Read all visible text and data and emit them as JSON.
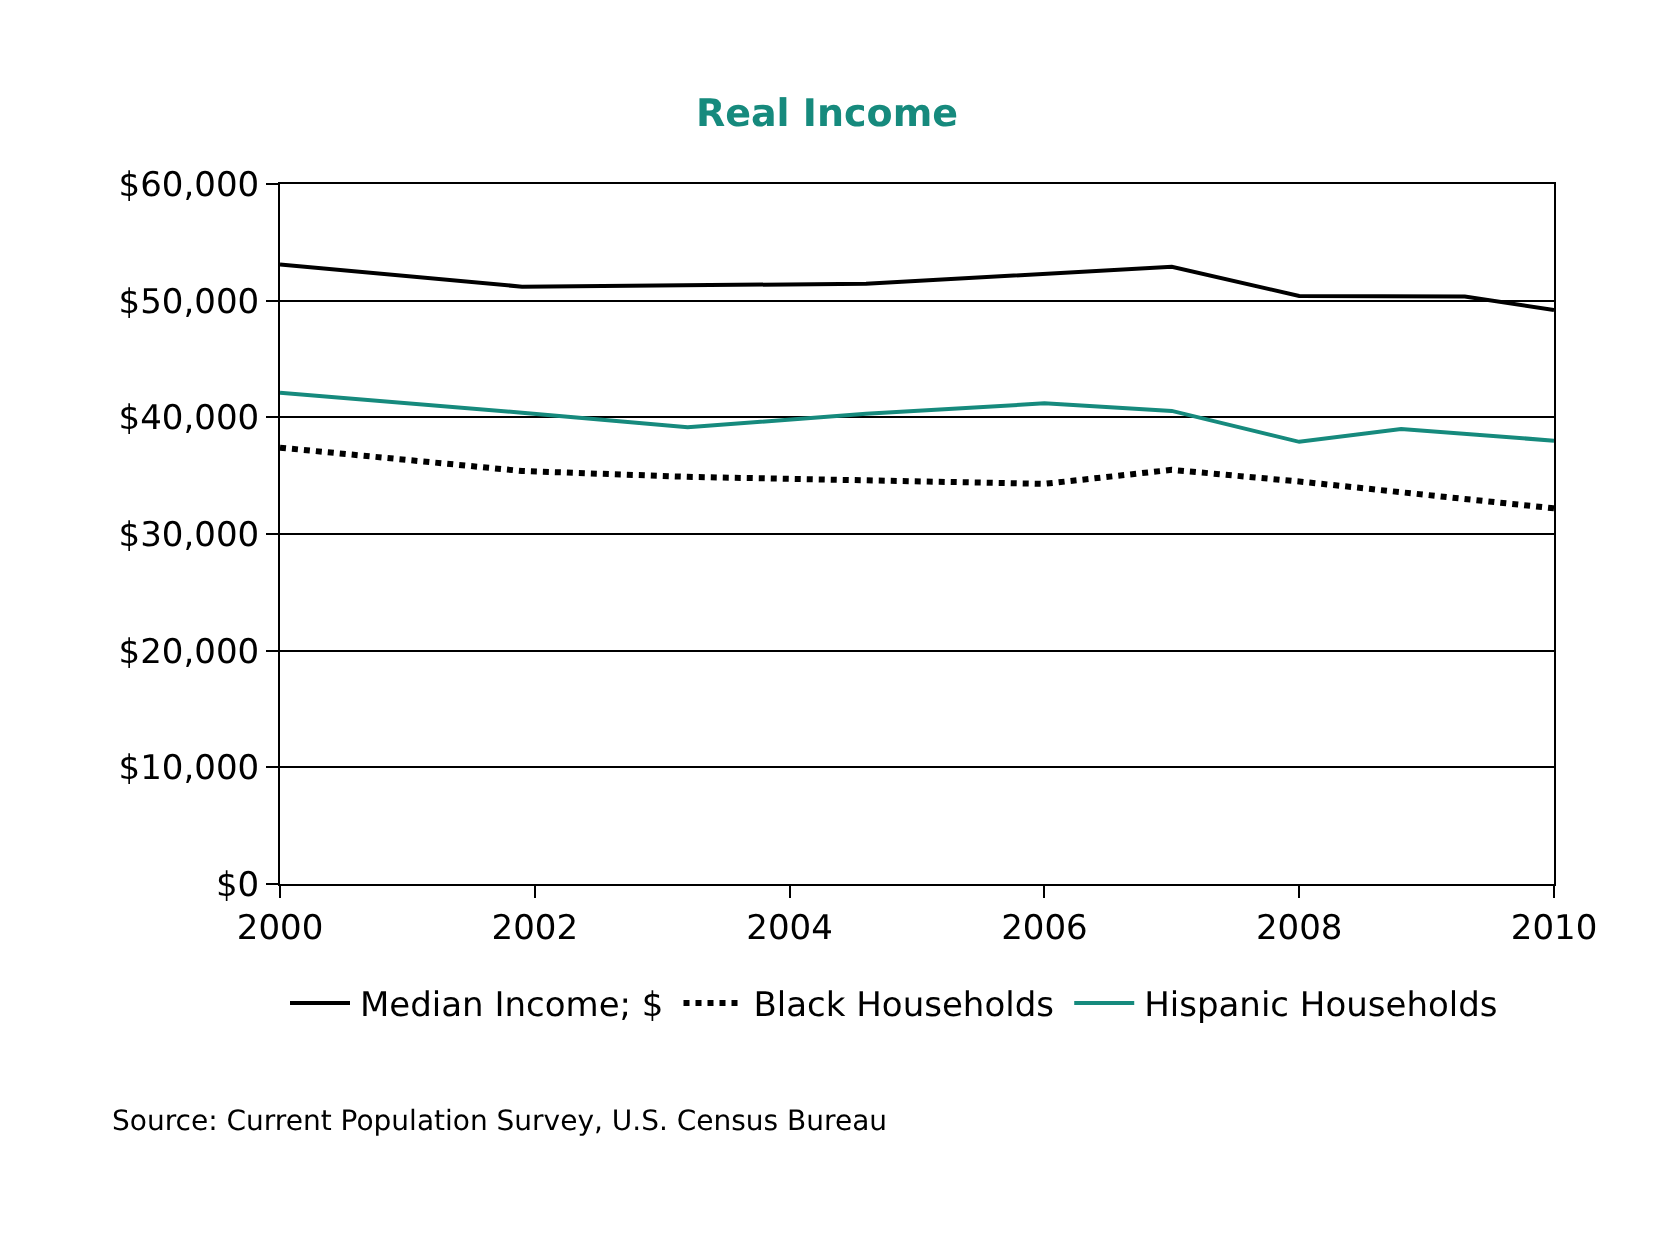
{
  "chart_data": {
    "type": "line",
    "title": "Real Income",
    "xlim": [
      2000,
      2010
    ],
    "xticks": [
      2000,
      2002,
      2004,
      2006,
      2008,
      2010
    ],
    "ylim": [
      0,
      60000
    ],
    "yticks": [
      {
        "value": 0,
        "label": "$0"
      },
      {
        "value": 10000,
        "label": "$10,000"
      },
      {
        "value": 20000,
        "label": "$20,000"
      },
      {
        "value": 30000,
        "label": "$30,000"
      },
      {
        "value": 40000,
        "label": "$40,000"
      },
      {
        "value": 50000,
        "label": "$50,000"
      },
      {
        "value": 60000,
        "label": "$60,000"
      }
    ],
    "grid": "y",
    "legend": "bottom",
    "series": [
      {
        "name": "Median Income; $",
        "color": "#000000",
        "line_style": "solid",
        "x": [
          2000,
          2001.9,
          2004.6,
          2007.0,
          2008.0,
          2009.3,
          2010
        ],
        "values": [
          53100,
          51200,
          51450,
          52900,
          50400,
          50350,
          49200
        ]
      },
      {
        "name": "Black Households",
        "color": "#000000",
        "line_style": "dotted",
        "x": [
          2000,
          2001.9,
          2003.2,
          2006.0,
          2007.0,
          2008.0,
          2010
        ],
        "values": [
          37400,
          35400,
          34900,
          34300,
          35500,
          34500,
          32200
        ]
      },
      {
        "name": "Hispanic Households",
        "color": "#168a7d",
        "line_style": "solid",
        "x": [
          2000,
          2001.9,
          2003.2,
          2004.6,
          2006.0,
          2007.0,
          2008.0,
          2008.8,
          2010
        ],
        "values": [
          42100,
          40400,
          39150,
          40300,
          41200,
          40550,
          37900,
          39000,
          38000
        ]
      }
    ],
    "annotations": [
      "Source: Current Population Survey, U.S. Census Bureau"
    ]
  }
}
